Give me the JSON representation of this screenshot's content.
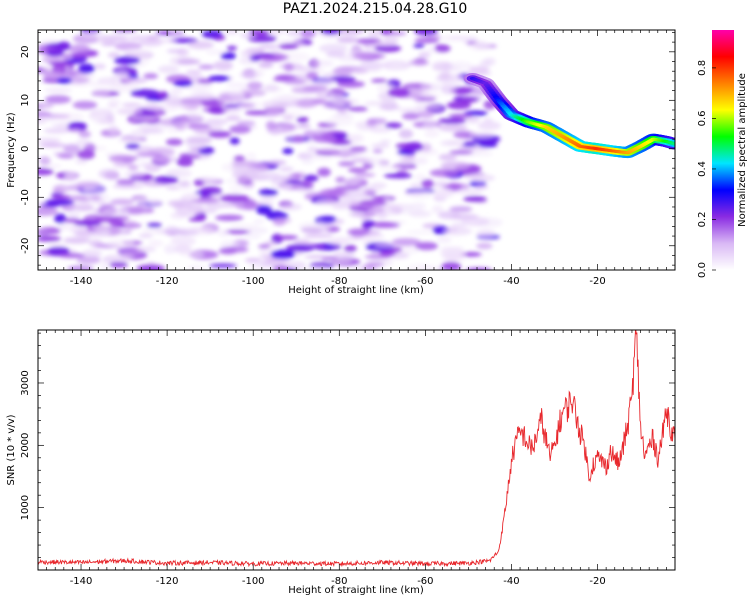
{
  "title": "PAZ1.2024.215.04.28.G10",
  "chart_data": [
    {
      "type": "heatmap",
      "xlabel": "Height of straight line (km)",
      "ylabel": "Frequency (Hz)",
      "xlim": [
        -150,
        -2
      ],
      "ylim": [
        -25,
        24.5
      ],
      "xticks": [
        -140,
        -120,
        -100,
        -80,
        -60,
        -40,
        -20
      ],
      "yticks": [
        -20,
        -10,
        0,
        10,
        20
      ],
      "colorbar": {
        "label": "Normalized spectral amplitude",
        "range": [
          0,
          0.95
        ],
        "ticks": [
          0.0,
          0.2,
          0.4,
          0.6,
          0.8
        ],
        "colors": [
          "#ffffff",
          "#d9b8f5",
          "#8a2be2",
          "#0000ff",
          "#00e5ff",
          "#00ff00",
          "#ffff00",
          "#ff8000",
          "#ff0000",
          "#ff00aa"
        ]
      },
      "noise_region_x": [
        -150,
        -45
      ],
      "signal_trace": {
        "x": [
          -49,
          -46,
          -43,
          -40,
          -36,
          -32,
          -28,
          -24,
          -20,
          -16,
          -13,
          -10,
          -7,
          -4,
          -2
        ],
        "y": [
          14.5,
          13.5,
          10,
          7,
          5.5,
          4.5,
          2.5,
          0.5,
          0,
          -0.5,
          -0.8,
          0.5,
          2,
          1.5,
          1
        ],
        "amplitude": [
          0.3,
          0.25,
          0.35,
          0.45,
          0.6,
          0.7,
          0.75,
          0.8,
          0.85,
          0.8,
          0.75,
          0.7,
          0.65,
          0.55,
          0.5
        ]
      }
    },
    {
      "type": "line",
      "xlabel": "Height of straight line (km)",
      "ylabel": "SNR (10 * v/v)",
      "xlim": [
        -150,
        -2
      ],
      "ylim": [
        0,
        3850
      ],
      "xticks": [
        -140,
        -120,
        -100,
        -80,
        -60,
        -40,
        -20
      ],
      "yticks": [
        1000,
        2000,
        3000
      ],
      "color": "#e8282d",
      "x": [
        -150,
        -140,
        -130,
        -120,
        -110,
        -100,
        -90,
        -80,
        -70,
        -60,
        -50,
        -45,
        -43,
        -42,
        -41,
        -40,
        -39,
        -38,
        -37,
        -36,
        -35,
        -34,
        -33,
        -32,
        -31,
        -30,
        -29,
        -28,
        -27,
        -26,
        -25,
        -24,
        -23,
        -22,
        -21,
        -20,
        -19,
        -18,
        -17,
        -16,
        -15,
        -14,
        -13,
        -12,
        -11,
        -10,
        -9,
        -8,
        -7,
        -6,
        -5,
        -4,
        -3,
        -2
      ],
      "y": [
        130,
        120,
        150,
        110,
        120,
        100,
        110,
        100,
        120,
        100,
        110,
        150,
        300,
        700,
        1200,
        1750,
        2050,
        2200,
        2150,
        2000,
        1950,
        2200,
        2400,
        2100,
        1800,
        2000,
        2300,
        2550,
        2600,
        2750,
        2500,
        2200,
        2000,
        1500,
        1700,
        1800,
        1750,
        1650,
        1900,
        1800,
        1700,
        2000,
        2300,
        2800,
        3800,
        2300,
        1800,
        2000,
        2100,
        1800,
        2100,
        2600,
        2300,
        2100
      ]
    }
  ]
}
